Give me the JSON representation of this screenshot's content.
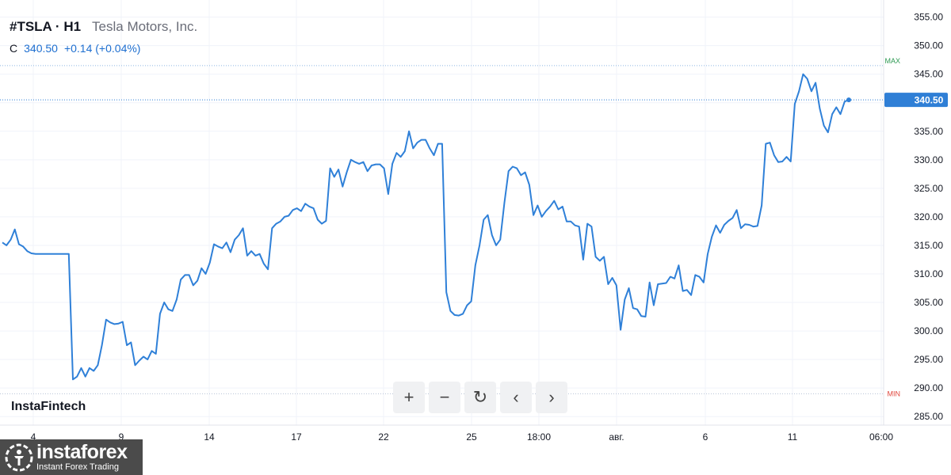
{
  "header": {
    "symbol": "#TSLA · H1",
    "company": "Tesla Motors, Inc.",
    "close_label": "C",
    "close_value": "340.50",
    "change": "+0.14 (+0.04%)"
  },
  "brand": {
    "fintech": "InstaFintech",
    "logo_name": "instaforex",
    "logo_tagline": "Instant Forex Trading"
  },
  "toolbar": {
    "zoom_in": "+",
    "zoom_out": "−",
    "reset": "↻",
    "back": "‹",
    "forward": "›"
  },
  "colors": {
    "line": "#2f80d8",
    "max": "#2e9a53",
    "min": "#e0463c",
    "price_tag": "#2f7fd6",
    "grid": "#f0f3fa"
  },
  "chart_data": {
    "type": "line",
    "series": [
      {
        "values": [
          315.5,
          315.0,
          316.0,
          317.8,
          315.2,
          314.8,
          314.0,
          313.6,
          313.5,
          313.5,
          313.5,
          313.5,
          313.5,
          313.5,
          313.5,
          313.5,
          313.5,
          291.5,
          292.0,
          293.5,
          292.0,
          293.5,
          293.0,
          294.0,
          297.5,
          302.0,
          301.5,
          301.2,
          301.3,
          301.6,
          297.5,
          298.0,
          294.0,
          294.8,
          295.5,
          295.0,
          296.5,
          296.0,
          303.0,
          305.0,
          303.8,
          303.5,
          305.5,
          309.0,
          309.8,
          309.8,
          308.0,
          308.8,
          311.0,
          310.0,
          312.0,
          315.2,
          314.8,
          314.5,
          315.5,
          313.8,
          316.0,
          316.8,
          318.0,
          313.2,
          314.0,
          313.2,
          313.5,
          311.8,
          310.8,
          318.0,
          318.8,
          319.2,
          320.0,
          320.2,
          321.2,
          321.5,
          321.0,
          322.3,
          321.8,
          321.5,
          319.5,
          318.8,
          319.3,
          328.5,
          327.0,
          328.3,
          325.3,
          327.8,
          330.0,
          329.6,
          329.3,
          329.6,
          328.0,
          329.0,
          329.2,
          329.2,
          328.5,
          324.0,
          329.3,
          331.2,
          330.5,
          331.5,
          335.0,
          332.0,
          333.0,
          333.5,
          333.5,
          332.0,
          330.8,
          332.8,
          332.8,
          306.8,
          303.5,
          302.8,
          302.7,
          303.0,
          304.5,
          305.2,
          311.5,
          315.0,
          319.5,
          320.3,
          316.8,
          315.0,
          316.0,
          322.5,
          328.0,
          328.8,
          328.5,
          327.3,
          327.8,
          325.6,
          320.3,
          322.0,
          320.0,
          321.0,
          321.8,
          322.8,
          321.3,
          321.8,
          319.2,
          319.2,
          318.5,
          318.3,
          312.5,
          318.8,
          318.3,
          313.0,
          312.3,
          313.0,
          308.2,
          309.3,
          308.0,
          300.2,
          305.5,
          307.5,
          304.0,
          303.8,
          302.6,
          302.5,
          308.5,
          304.5,
          308.2,
          308.3,
          308.4,
          309.5,
          309.2,
          311.5,
          307.0,
          307.2,
          306.3,
          309.8,
          309.5,
          308.5,
          313.5,
          316.5,
          318.5,
          317.2,
          318.6,
          319.3,
          319.8,
          321.2,
          318.0,
          318.7,
          318.6,
          318.3,
          318.4,
          322.0,
          332.8,
          333.0,
          330.8,
          329.6,
          329.7,
          330.5,
          329.7,
          339.8,
          342.0,
          345.0,
          344.2,
          342.0,
          343.5,
          339.0,
          336.0,
          334.8,
          338.0,
          339.2,
          338.0,
          340.2,
          340.5
        ]
      }
    ],
    "ylim": [
      283.5,
      358
    ],
    "y_ticks": [
      "285.00",
      "290.00",
      "295.00",
      "300.00",
      "305.00",
      "310.00",
      "315.00",
      "320.00",
      "325.00",
      "330.00",
      "335.00",
      "340.00",
      "345.00",
      "350.00",
      "355.00"
    ],
    "x_ticks": [
      "4",
      "9",
      "14",
      "17",
      "22",
      "25",
      "18:00",
      "авг.",
      "6",
      "11",
      "06:00"
    ],
    "max_label": "MAX",
    "max_value": 346.5,
    "min_label": "MIN",
    "min_value": 289.0,
    "last_label": "340.50",
    "last_value": 340.5,
    "grid": true
  }
}
